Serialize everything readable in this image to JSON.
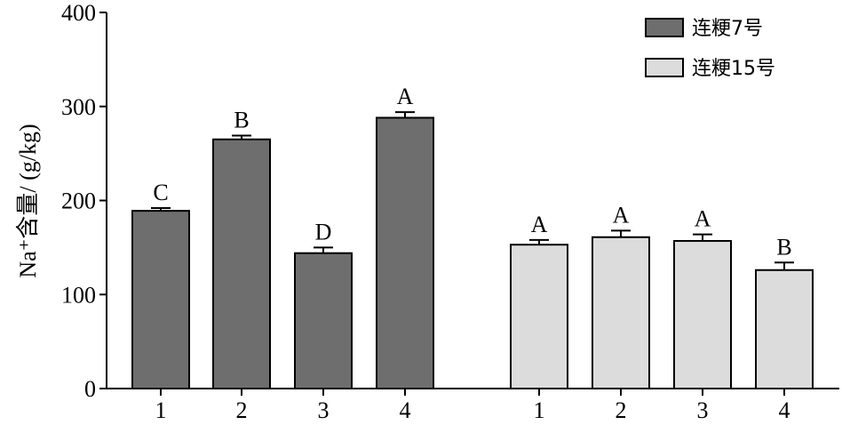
{
  "chart_data": {
    "type": "bar",
    "ylabel": "Na⁺含量/ (g/kg)",
    "ylim": [
      0,
      400
    ],
    "yticks": [
      0,
      100,
      200,
      300,
      400
    ],
    "grid": false,
    "legend_position": "top-right",
    "colors": {
      "连粳7号": "#6e6e6e",
      "连粳15号": "#dcdcdc"
    },
    "series": [
      {
        "name": "连粳7号",
        "categories": [
          "1",
          "2",
          "3",
          "4"
        ],
        "values": [
          189,
          265,
          144,
          288
        ],
        "errors": [
          3,
          4,
          6,
          6
        ],
        "labels": [
          "C",
          "B",
          "D",
          "A"
        ]
      },
      {
        "name": "连粳15号",
        "categories": [
          "1",
          "2",
          "3",
          "4"
        ],
        "values": [
          153,
          161,
          157,
          126
        ],
        "errors": [
          5,
          7,
          7,
          8
        ],
        "labels": [
          "A",
          "A",
          "A",
          "B"
        ]
      }
    ]
  }
}
